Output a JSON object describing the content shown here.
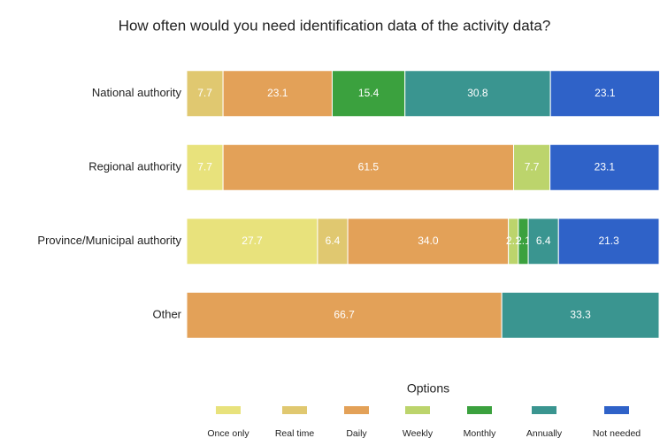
{
  "chart_data": {
    "type": "stacked_barh",
    "title": "How often would you need identification data of the activity data?",
    "categories": [
      "National authority",
      "Regional authority",
      "Province/Municipal authority",
      "Other"
    ],
    "xlim": [
      0,
      100
    ],
    "legend_title": "Options",
    "series": [
      {
        "name": "Once only",
        "color": "#e8e27c",
        "values": [
          null,
          7.7,
          27.7,
          null
        ],
        "value_labels": [
          null,
          "7.7",
          "27.7",
          null
        ]
      },
      {
        "name": "Real time",
        "color": "#e0c870",
        "values": [
          7.7,
          null,
          6.4,
          null
        ],
        "value_labels": [
          "7.7",
          null,
          "6.4",
          null
        ]
      },
      {
        "name": "Daily",
        "color": "#e3a158",
        "values": [
          23.1,
          61.5,
          34.0,
          66.7
        ],
        "value_labels": [
          "23.1",
          "61.5",
          "34.0",
          "66.7"
        ]
      },
      {
        "name": "Weekly",
        "color": "#bcd46c",
        "values": [
          null,
          7.7,
          2.1,
          null
        ],
        "value_labels": [
          null,
          "7.7",
          "2.1",
          null
        ]
      },
      {
        "name": "Monthly",
        "color": "#3ba13e",
        "values": [
          15.4,
          null,
          2.1,
          null
        ],
        "value_labels": [
          "15.4",
          null,
          "2.1",
          null
        ]
      },
      {
        "name": "Annually",
        "color": "#3a9590",
        "values": [
          30.8,
          null,
          6.4,
          33.3
        ],
        "value_labels": [
          "30.8",
          null,
          "6.4",
          "33.3"
        ]
      },
      {
        "name": "Not needed",
        "color": "#2f62c8",
        "values": [
          23.1,
          23.1,
          21.3,
          null
        ],
        "value_labels": [
          "23.1",
          "23.1",
          "21.3",
          null
        ]
      }
    ]
  }
}
